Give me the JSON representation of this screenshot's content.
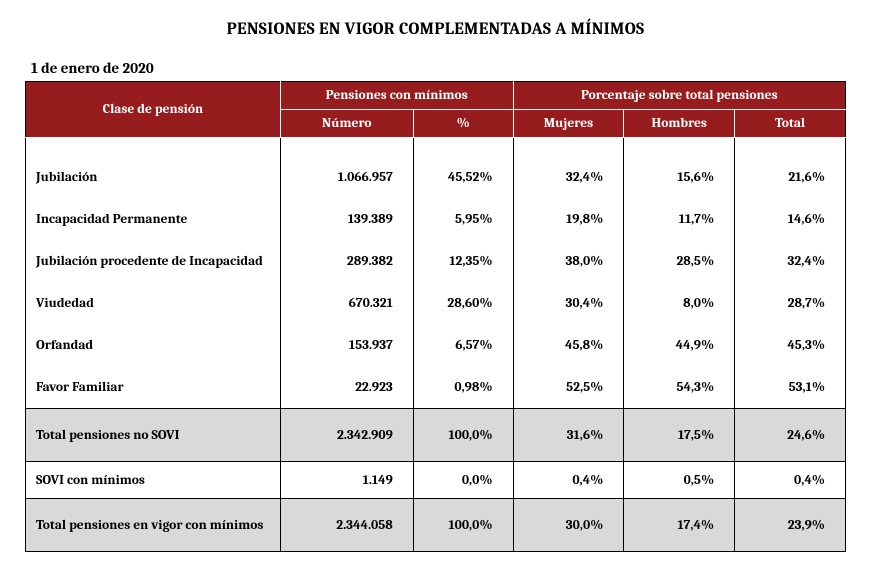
{
  "title": "PENSIONES EN VIGOR COMPLEMENTADAS A MÍNIMOS",
  "subtitle": "1 de enero de 2020",
  "header": {
    "class": "Clase de pensión",
    "group_min": "Pensiones con mínimos",
    "group_pct": "Porcentaje sobre total pensiones",
    "num": "Número",
    "pct": "%",
    "mujeres": "Mujeres",
    "hombres": "Hombres",
    "total": "Total"
  },
  "rows": [
    {
      "label": "Jubilación",
      "num": "1.066.957",
      "pct": "45,52%",
      "m": "32,4%",
      "h": "15,6%",
      "t": "21,6%"
    },
    {
      "label": "Incapacidad Permanente",
      "num": "139.389",
      "pct": "5,95%",
      "m": "19,8%",
      "h": "11,7%",
      "t": "14,6%"
    },
    {
      "label": "Jubilación procedente de Incapacidad",
      "num": "289.382",
      "pct": "12,35%",
      "m": "38,0%",
      "h": "28,5%",
      "t": "32,4%"
    },
    {
      "label": "Viudedad",
      "num": "670.321",
      "pct": "28,60%",
      "m": "30,4%",
      "h": "8,0%",
      "t": "28,7%"
    },
    {
      "label": "Orfandad",
      "num": "153.937",
      "pct": "6,57%",
      "m": "45,8%",
      "h": "44,9%",
      "t": "45,3%"
    },
    {
      "label": "Favor Familiar",
      "num": "22.923",
      "pct": "0,98%",
      "m": "52,5%",
      "h": "54,3%",
      "t": "53,1%"
    }
  ],
  "total_no_sovi": {
    "label": "Total pensiones no SOVI",
    "num": "2.342.909",
    "pct": "100,0%",
    "m": "31,6%",
    "h": "17,5%",
    "t": "24,6%"
  },
  "sovi": {
    "label": "SOVI con mínimos",
    "num": "1.149",
    "pct": "0,0%",
    "m": "0,4%",
    "h": "0,5%",
    "t": "0,4%"
  },
  "total_vigor": {
    "label": "Total pensiones en vigor con mínimos",
    "num": "2.344.058",
    "pct": "100,0%",
    "m": "30,0%",
    "h": "17,4%",
    "t": "23,9%"
  },
  "colors": {
    "header_bg": "#961c1e",
    "header_fg": "#ffffff",
    "total_bg": "#d9d9d9",
    "border": "#000000",
    "page_bg": "#ffffff"
  },
  "fonts": {
    "title_size_pt": 13,
    "body_size_pt": 10
  }
}
